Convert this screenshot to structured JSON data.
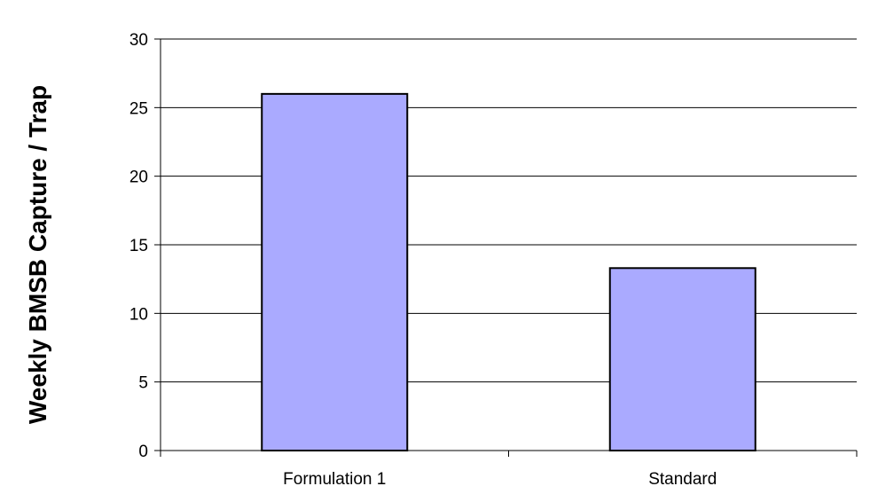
{
  "chart_data": {
    "type": "bar",
    "title": "",
    "xlabel": "",
    "ylabel": "Weekly BMSB Capture / Trap",
    "categories": [
      "Formulation 1",
      "Standard"
    ],
    "values": [
      26,
      13.3
    ],
    "ylim": [
      0,
      30
    ],
    "yticks": [
      0,
      5,
      10,
      15,
      20,
      25,
      30
    ],
    "grid": true,
    "legend": "none",
    "bar_color": "#aaaaff",
    "bar_edge_color": "#000000"
  }
}
